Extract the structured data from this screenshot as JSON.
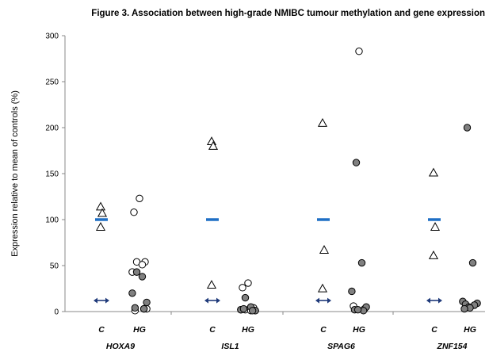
{
  "chart_data": {
    "type": "scatter",
    "title": "Figure 3. Association between high-grade NMIBC tumour methylation and gene expression",
    "ylabel": "Expression relative to mean of controls (%)",
    "ylim": [
      0,
      300
    ],
    "yticks": [
      "0",
      "50",
      "100",
      "150",
      "200",
      "250",
      "300"
    ],
    "group_labels": [
      "C",
      "HG"
    ],
    "genes": [
      {
        "name": "HOXA9",
        "C": [
          114,
          107,
          92
        ],
        "C_mean": 100,
        "HG_unmethylated": [
          123,
          108,
          54,
          54,
          51,
          43,
          3,
          1,
          3
        ],
        "HG_methylated": [
          43,
          38,
          20,
          10,
          4,
          3
        ],
        "marker": 12
      },
      {
        "name": "ISL1",
        "C": [
          185,
          180,
          29
        ],
        "C_mean": 100,
        "HG_unmethylated": [
          31,
          26,
          4,
          2,
          1,
          2,
          1
        ],
        "HG_methylated": [
          15,
          5,
          2,
          1,
          3,
          1
        ],
        "marker": 12
      },
      {
        "name": "SPAG6",
        "C": [
          205,
          67,
          25
        ],
        "C_mean": 100,
        "HG_unmethylated": [
          283,
          6,
          3
        ],
        "HG_methylated": [
          162,
          53,
          22,
          5,
          2,
          1,
          2
        ],
        "marker": 12
      },
      {
        "name": "ZNF154",
        "C": [
          151,
          92,
          61
        ],
        "C_mean": 100,
        "HG_unmethylated": [],
        "HG_methylated": [
          200,
          53,
          11,
          9,
          8,
          7,
          5,
          4,
          3
        ],
        "marker": 12
      }
    ],
    "colors": {
      "mean_bar": "#1f6fc5",
      "marker_arrow": "#1f3a7a",
      "methylated_fill": "#808080",
      "axis": "#888888"
    }
  }
}
